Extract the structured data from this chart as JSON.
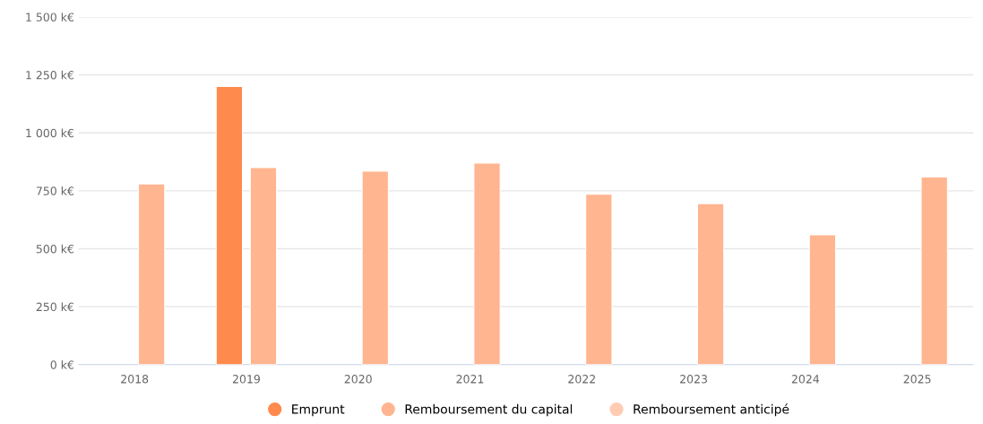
{
  "chart_data": {
    "type": "bar",
    "categories": [
      "2018",
      "2019",
      "2020",
      "2021",
      "2022",
      "2023",
      "2024",
      "2025"
    ],
    "series": [
      {
        "name": "Emprunt",
        "color": "#ff8a4e",
        "values": [
          null,
          1200,
          null,
          null,
          null,
          null,
          null,
          null
        ]
      },
      {
        "name": "Remboursement du capital",
        "color": "#ffb590",
        "values": [
          780,
          850,
          835,
          870,
          735,
          695,
          560,
          810
        ]
      },
      {
        "name": "Remboursement anticipé",
        "color": "#ffcbb2",
        "values": [
          null,
          null,
          null,
          null,
          null,
          null,
          null,
          null
        ]
      }
    ],
    "ylim": [
      0,
      1500
    ],
    "yticks": [
      {
        "value": 0,
        "label": "0 k€"
      },
      {
        "value": 250,
        "label": "250 k€"
      },
      {
        "value": 500,
        "label": "500 k€"
      },
      {
        "value": 750,
        "label": "750 k€"
      },
      {
        "value": 1000,
        "label": "1 000 k€"
      },
      {
        "value": 1250,
        "label": "1 250 k€"
      },
      {
        "value": 1500,
        "label": "1 500 k€"
      }
    ],
    "grid": "y",
    "legend": "bottom",
    "marker": "circle"
  }
}
